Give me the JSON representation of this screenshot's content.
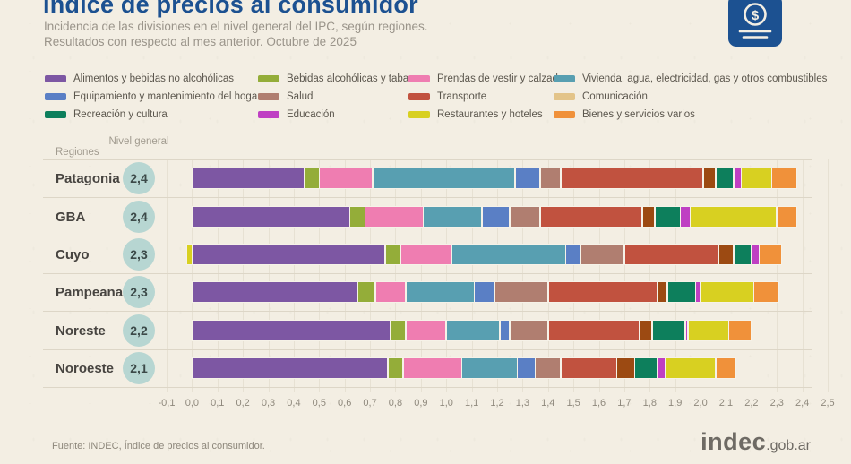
{
  "header": {
    "title": "Índice de precios al consumidor",
    "subtitle_line1": "Incidencia de las divisiones en el nivel general del IPC, según regiones.",
    "subtitle_line2": "Resultados con respecto al mes anterior. Octubre de 2025"
  },
  "icon": {
    "name": "money-tag-icon",
    "color": "#1c5191",
    "symbol": "$"
  },
  "table_headers": {
    "regions": "Regiones",
    "level": "Nivel general"
  },
  "chart_data": {
    "type": "bar",
    "orientation": "horizontal-stacked",
    "xlim": [
      -0.1,
      2.5
    ],
    "tick_step": 0.1,
    "grid": true,
    "legend_position": "top",
    "categories": [
      {
        "label": "Alimentos y bebidas no alcohólicas",
        "color": "#7d57a3"
      },
      {
        "label": "Bebidas alcohólicas y tabaco",
        "color": "#94ad39"
      },
      {
        "label": "Prendas de vestir y calzado",
        "color": "#ef7db1"
      },
      {
        "label": "Vivienda, agua, electricidad, gas y otros combustibles",
        "color": "#589fb1"
      },
      {
        "label": "Equipamiento y mantenimiento del hogar",
        "color": "#5a7fc5"
      },
      {
        "label": "Salud",
        "color": "#b07e70"
      },
      {
        "label": "Transporte",
        "color": "#c1523f"
      },
      {
        "label": "Comunicación",
        "color": "#e3c489",
        "bar_color": "#9c4a12"
      },
      {
        "label": "Recreación y cultura",
        "color": "#0d7f5c"
      },
      {
        "label": "Educación",
        "color": "#bf3fc3"
      },
      {
        "label": "Restaurantes y hoteles",
        "color": "#d8d021"
      },
      {
        "label": "Bienes y servicios varios",
        "color": "#f0913a"
      }
    ],
    "legend_order_note": "legend fills 4 columns row-wise in category order",
    "regions": [
      {
        "name": "Patagonia",
        "nivel_general": "2,4",
        "values": [
          0.44,
          0.06,
          0.21,
          0.56,
          0.1,
          0.08,
          0.56,
          0.05,
          0.07,
          0.03,
          0.12,
          0.1
        ]
      },
      {
        "name": "GBA",
        "nivel_general": "2,4",
        "values": [
          0.62,
          0.06,
          0.23,
          0.23,
          0.11,
          0.12,
          0.4,
          0.05,
          0.1,
          0.04,
          0.34,
          0.08
        ]
      },
      {
        "name": "Cuyo",
        "nivel_general": "2,3",
        "values": [
          0.76,
          0.06,
          0.2,
          0.45,
          0.06,
          0.17,
          0.37,
          0.06,
          0.07,
          0.03,
          -0.02,
          0.09
        ]
      },
      {
        "name": "Pampeana",
        "nivel_general": "2,3",
        "values": [
          0.65,
          0.07,
          0.12,
          0.27,
          0.08,
          0.21,
          0.43,
          0.04,
          0.11,
          0.02,
          0.21,
          0.1
        ]
      },
      {
        "name": "Noreste",
        "nivel_general": "2,2",
        "values": [
          0.78,
          0.06,
          0.16,
          0.21,
          0.04,
          0.15,
          0.36,
          0.05,
          0.13,
          0.01,
          0.16,
          0.09
        ]
      },
      {
        "name": "Noroeste",
        "nivel_general": "2,1",
        "values": [
          0.77,
          0.06,
          0.23,
          0.22,
          0.07,
          0.1,
          0.22,
          0.07,
          0.09,
          0.03,
          0.2,
          0.08
        ]
      }
    ]
  },
  "footer": {
    "source": "Fuente: INDEC, Índice de precios al consumidor.",
    "logo_main": "indec",
    "logo_suffix": ".gob.ar"
  }
}
